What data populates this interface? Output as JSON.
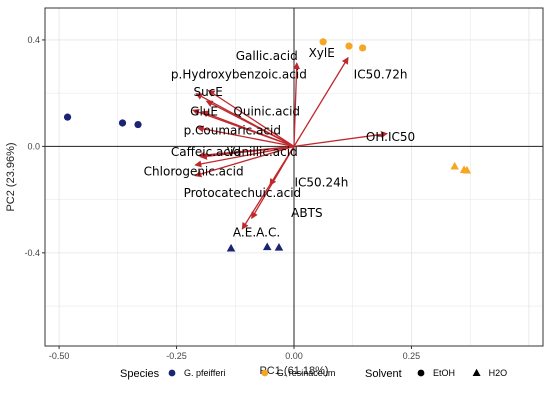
{
  "chart_data": {
    "type": "scatter",
    "subtype": "pca-biplot",
    "xlabel": "PC1 (61.18%)",
    "ylabel": "PC2 (23.96%)",
    "xlim": [
      -0.53,
      0.53
    ],
    "ylim": [
      -0.75,
      0.52
    ],
    "xticks": [
      -0.5,
      -0.25,
      0.0,
      0.25
    ],
    "xtick_labels": [
      "-0.50",
      "-0.25",
      "0.00",
      "0.25"
    ],
    "yticks": [
      0.4,
      0.0,
      -0.4
    ],
    "ytick_labels": [
      "0.4",
      "0.0",
      "-0.4"
    ],
    "grid": true,
    "reference_lines": {
      "x": 0,
      "y": 0
    },
    "colors": {
      "G. pfeifferi": "#1a2472",
      "G. resinaceum": "#f5a623",
      "arrow": "#c0282d",
      "grid": "#e4e4e4",
      "refline": "#222222"
    },
    "points": [
      {
        "species": "G. pfeifferi",
        "solvent": "EtOH",
        "x": -0.482,
        "y": 0.11
      },
      {
        "species": "G. pfeifferi",
        "solvent": "EtOH",
        "x": -0.365,
        "y": 0.088
      },
      {
        "species": "G. pfeifferi",
        "solvent": "EtOH",
        "x": -0.332,
        "y": 0.082
      },
      {
        "species": "G. pfeifferi",
        "solvent": "H2O",
        "x": -0.134,
        "y": -0.383
      },
      {
        "species": "G. pfeifferi",
        "solvent": "H2O",
        "x": -0.057,
        "y": -0.378
      },
      {
        "species": "G. pfeifferi",
        "solvent": "H2O",
        "x": -0.032,
        "y": -0.38
      },
      {
        "species": "G. resinaceum",
        "solvent": "EtOH",
        "x": 0.062,
        "y": 0.393
      },
      {
        "species": "G. resinaceum",
        "solvent": "EtOH",
        "x": 0.117,
        "y": 0.377
      },
      {
        "species": "G. resinaceum",
        "solvent": "EtOH",
        "x": 0.146,
        "y": 0.37
      },
      {
        "species": "G. resinaceum",
        "solvent": "H2O",
        "x": 0.342,
        "y": -0.075
      },
      {
        "species": "G. resinaceum",
        "solvent": "H2O",
        "x": 0.362,
        "y": -0.088
      },
      {
        "species": "G. resinaceum",
        "solvent": "H2O",
        "x": 0.368,
        "y": -0.09
      }
    ],
    "loadings": [
      {
        "name": "Gallic.acid",
        "x": -0.182,
        "y": 0.21,
        "lx": -0.124,
        "ly": 0.339
      },
      {
        "name": "p.Hydroxybenzoic.acid",
        "x": -0.208,
        "y": 0.198,
        "lx": -0.262,
        "ly": 0.27
      },
      {
        "name": "SucE",
        "x": -0.186,
        "y": 0.17,
        "lx": -0.214,
        "ly": 0.205
      },
      {
        "name": "GluE",
        "x": -0.215,
        "y": 0.136,
        "lx": -0.221,
        "ly": 0.132
      },
      {
        "name": "Quinic.acid",
        "x": -0.196,
        "y": 0.13,
        "lx": -0.129,
        "ly": 0.132
      },
      {
        "name": "p.Coumaric.acid",
        "x": -0.205,
        "y": 0.07,
        "lx": -0.235,
        "ly": 0.06
      },
      {
        "name": "Caffeic.acid",
        "x": -0.203,
        "y": -0.035,
        "lx": -0.262,
        "ly": -0.022
      },
      {
        "name": "Vanillic.acid",
        "x": -0.198,
        "y": -0.04,
        "lx": -0.143,
        "ly": -0.022
      },
      {
        "name": "Chlorogenic.acid",
        "x": -0.21,
        "y": -0.07,
        "lx": -0.32,
        "ly": -0.095
      },
      {
        "name": "Protocatechuic.acid",
        "x": -0.21,
        "y": -0.11,
        "lx": -0.235,
        "ly": -0.175
      },
      {
        "name": "XylE",
        "x": 0.006,
        "y": 0.313,
        "lx": 0.031,
        "ly": 0.35
      },
      {
        "name": "IC50.72h",
        "x": 0.115,
        "y": 0.333,
        "lx": 0.127,
        "ly": 0.27
      },
      {
        "name": "OH.IC50",
        "x": 0.198,
        "y": 0.048,
        "lx": 0.153,
        "ly": 0.036
      },
      {
        "name": "IC50.24h",
        "x": -0.051,
        "y": -0.145,
        "lx": 0.001,
        "ly": -0.135
      },
      {
        "name": "ABTS",
        "x": -0.09,
        "y": -0.27,
        "lx": -0.006,
        "ly": -0.25
      },
      {
        "name": "A.E.A.C.",
        "x": -0.11,
        "y": -0.31,
        "lx": -0.13,
        "ly": -0.323
      }
    ],
    "legend": {
      "placement": "bottom",
      "species_title": "Species",
      "species": [
        {
          "label": "G. pfeifferi",
          "color": "#1a2472"
        },
        {
          "label": "G. resinaceum",
          "color": "#f5a623"
        }
      ],
      "solvent_title": "Solvent",
      "solvent": [
        {
          "label": "EtOH",
          "shape": "circle"
        },
        {
          "label": "H2O",
          "shape": "triangle"
        }
      ]
    }
  }
}
